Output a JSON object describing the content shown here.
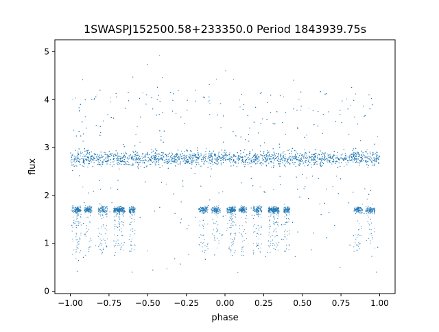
{
  "chart_data": {
    "type": "scatter",
    "title": "1SWASPJ152500.58+233350.0 Period 1843939.75s",
    "xlabel": "phase",
    "ylabel": "flux",
    "xlim": [
      -1.1,
      1.1
    ],
    "ylim": [
      -0.05,
      5.25
    ],
    "xticks": [
      -1.0,
      -0.75,
      -0.5,
      -0.25,
      0.0,
      0.25,
      0.5,
      0.75,
      1.0
    ],
    "xtick_labels": [
      "−1.00",
      "−0.75",
      "−0.50",
      "−0.25",
      "0.00",
      "0.25",
      "0.50",
      "0.75",
      "1.00"
    ],
    "yticks": [
      0,
      1,
      2,
      3,
      4,
      5
    ],
    "ytick_labels": [
      "0",
      "1",
      "2",
      "3",
      "4",
      "5"
    ],
    "grid": false,
    "series": [
      {
        "color": "#1f77b4",
        "marker_size": 0.6,
        "phase_range": [
          -1.0,
          1.0
        ],
        "symmetry_period": 1.0,
        "upper_band_flux": 2.75,
        "upper_band_spread": [
          2.45,
          3.1
        ],
        "lower_band_flux": 1.7,
        "lower_band_spread": [
          1.55,
          1.85
        ],
        "dip_phases": [
          -0.95,
          -0.89,
          -0.8,
          -0.7,
          -0.67,
          -0.6,
          -0.13,
          -0.05,
          0.03,
          0.05,
          0.12,
          0.22,
          0.3,
          0.33,
          0.4,
          0.85,
          0.93
        ],
        "outlier_range": [
          0.15,
          5.0
        ]
      }
    ]
  }
}
